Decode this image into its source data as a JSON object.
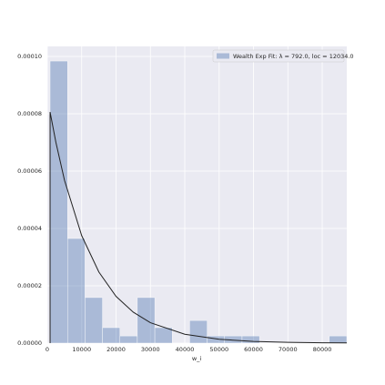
{
  "chart_data": {
    "type": "histogram",
    "name": "Wealth Exp Fit: λ = 792.0, loc = 12034.0",
    "color": "#4c72b0",
    "bins": [
      800,
      5879,
      10958,
      16037,
      21116,
      26195,
      31274,
      36353,
      41432,
      46511,
      51590,
      56669,
      61748,
      66827,
      71906,
      76985,
      82064,
      87143
    ],
    "values": [
      9.84e-05,
      3.65e-05,
      1.59e-05,
      5.4e-06,
      2.5e-06,
      1.59e-05,
      5.4e-06,
      0,
      7.9e-06,
      2.5e-06,
      2.5e-06,
      2.5e-06,
      0,
      0,
      0,
      0,
      2.5e-06
    ],
    "line": {
      "color": "#222222",
      "x": [
        800,
        800,
        2500,
        5000,
        10000,
        15000,
        20000,
        25000,
        30000,
        40000,
        50000,
        60000,
        70000,
        80000,
        87143
      ],
      "y": [
        0,
        8.06e-05,
        7e-05,
        5.68e-05,
        3.75e-05,
        2.48e-05,
        1.63e-05,
        1.08e-05,
        7.12e-06,
        3.1e-06,
        1.35e-06,
        5.9e-07,
        2.6e-07,
        1.1e-07,
        6e-08
      ]
    },
    "x_label": "w_i",
    "xlim": [
      0,
      87143
    ],
    "ylim": [
      0,
      0.0001035
    ],
    "xticks": [
      0,
      10000,
      20000,
      30000,
      40000,
      50000,
      60000,
      70000,
      80000
    ],
    "yticks": [
      {
        "value": 0,
        "label": "0.00000"
      },
      {
        "value": 2e-05,
        "label": "0.00002"
      },
      {
        "value": 4e-05,
        "label": "0.00004"
      },
      {
        "value": 6e-05,
        "label": "0.00006"
      },
      {
        "value": 8e-05,
        "label": "0.00008"
      },
      {
        "value": 0.0001,
        "label": "0.00010"
      }
    ],
    "grid": true,
    "legend": "upper right"
  }
}
